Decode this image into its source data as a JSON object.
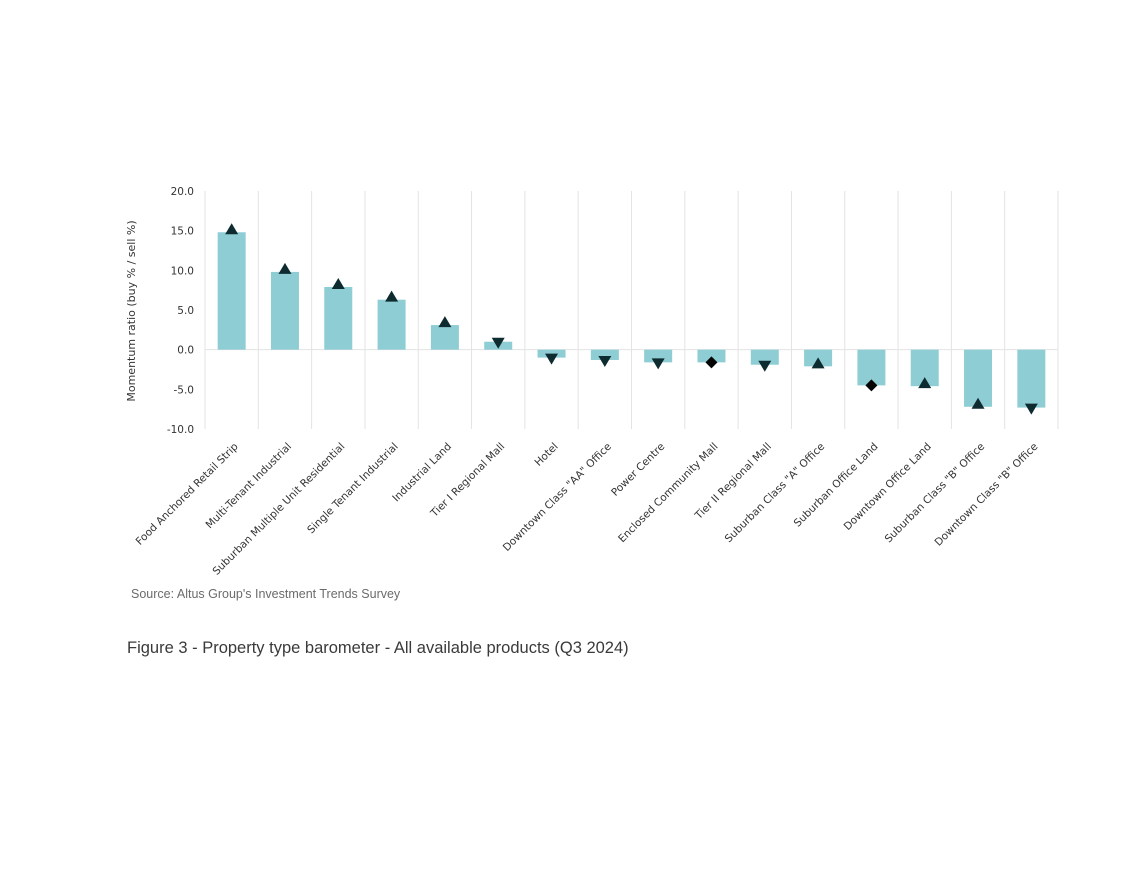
{
  "chart_data": {
    "type": "bar",
    "title": "",
    "xlabel": "",
    "ylabel": "Momentum ratio (buy % / sell %)",
    "ylim": [
      -10,
      20
    ],
    "yticks": [
      "20.0",
      "15.0",
      "10.0",
      "5.0",
      "0.0",
      "-5.0",
      "-10.0"
    ],
    "ytick_values": [
      20,
      15,
      10,
      5,
      0,
      -5,
      -10
    ],
    "grid": "vertical category separators",
    "categories": [
      "Food Anchored Retail Strip",
      "Multi-Tenant Industrial",
      "Suburban Multiple Unit Residential",
      "Single Tenant Industrial",
      "Industrial Land",
      "Tier I Regional Mall",
      "Hotel",
      "Downtown Class \"AA\" Office",
      "Power Centre",
      "Enclosed Community Mall",
      "Tier II Regional Mall",
      "Suburban Class \"A\" Office",
      "Suburban Office Land",
      "Downtown Office Land",
      "Suburban Class \"B\" Office",
      "Downtown Class \"B\" Office"
    ],
    "series": [
      {
        "name": "Momentum ratio",
        "values": [
          14.8,
          9.8,
          7.9,
          6.3,
          3.1,
          1.0,
          -1.0,
          -1.3,
          -1.6,
          -1.6,
          -1.9,
          -2.1,
          -4.5,
          -4.6,
          -7.2,
          -7.3
        ]
      }
    ],
    "markers": [
      "up",
      "up",
      "up",
      "up",
      "up",
      "down",
      "down",
      "down",
      "down",
      "diamond",
      "down",
      "up",
      "diamond",
      "up",
      "up",
      "down"
    ],
    "colors": {
      "bar": "#8ecdd4",
      "marker": "#0e2b30",
      "diamond": "#050505",
      "grid": "#e3e3e3"
    }
  },
  "source": "Source:  Altus Group's Investment Trends Survey",
  "caption": "Figure 3  -  Property type barometer - All available products (Q3 2024)"
}
